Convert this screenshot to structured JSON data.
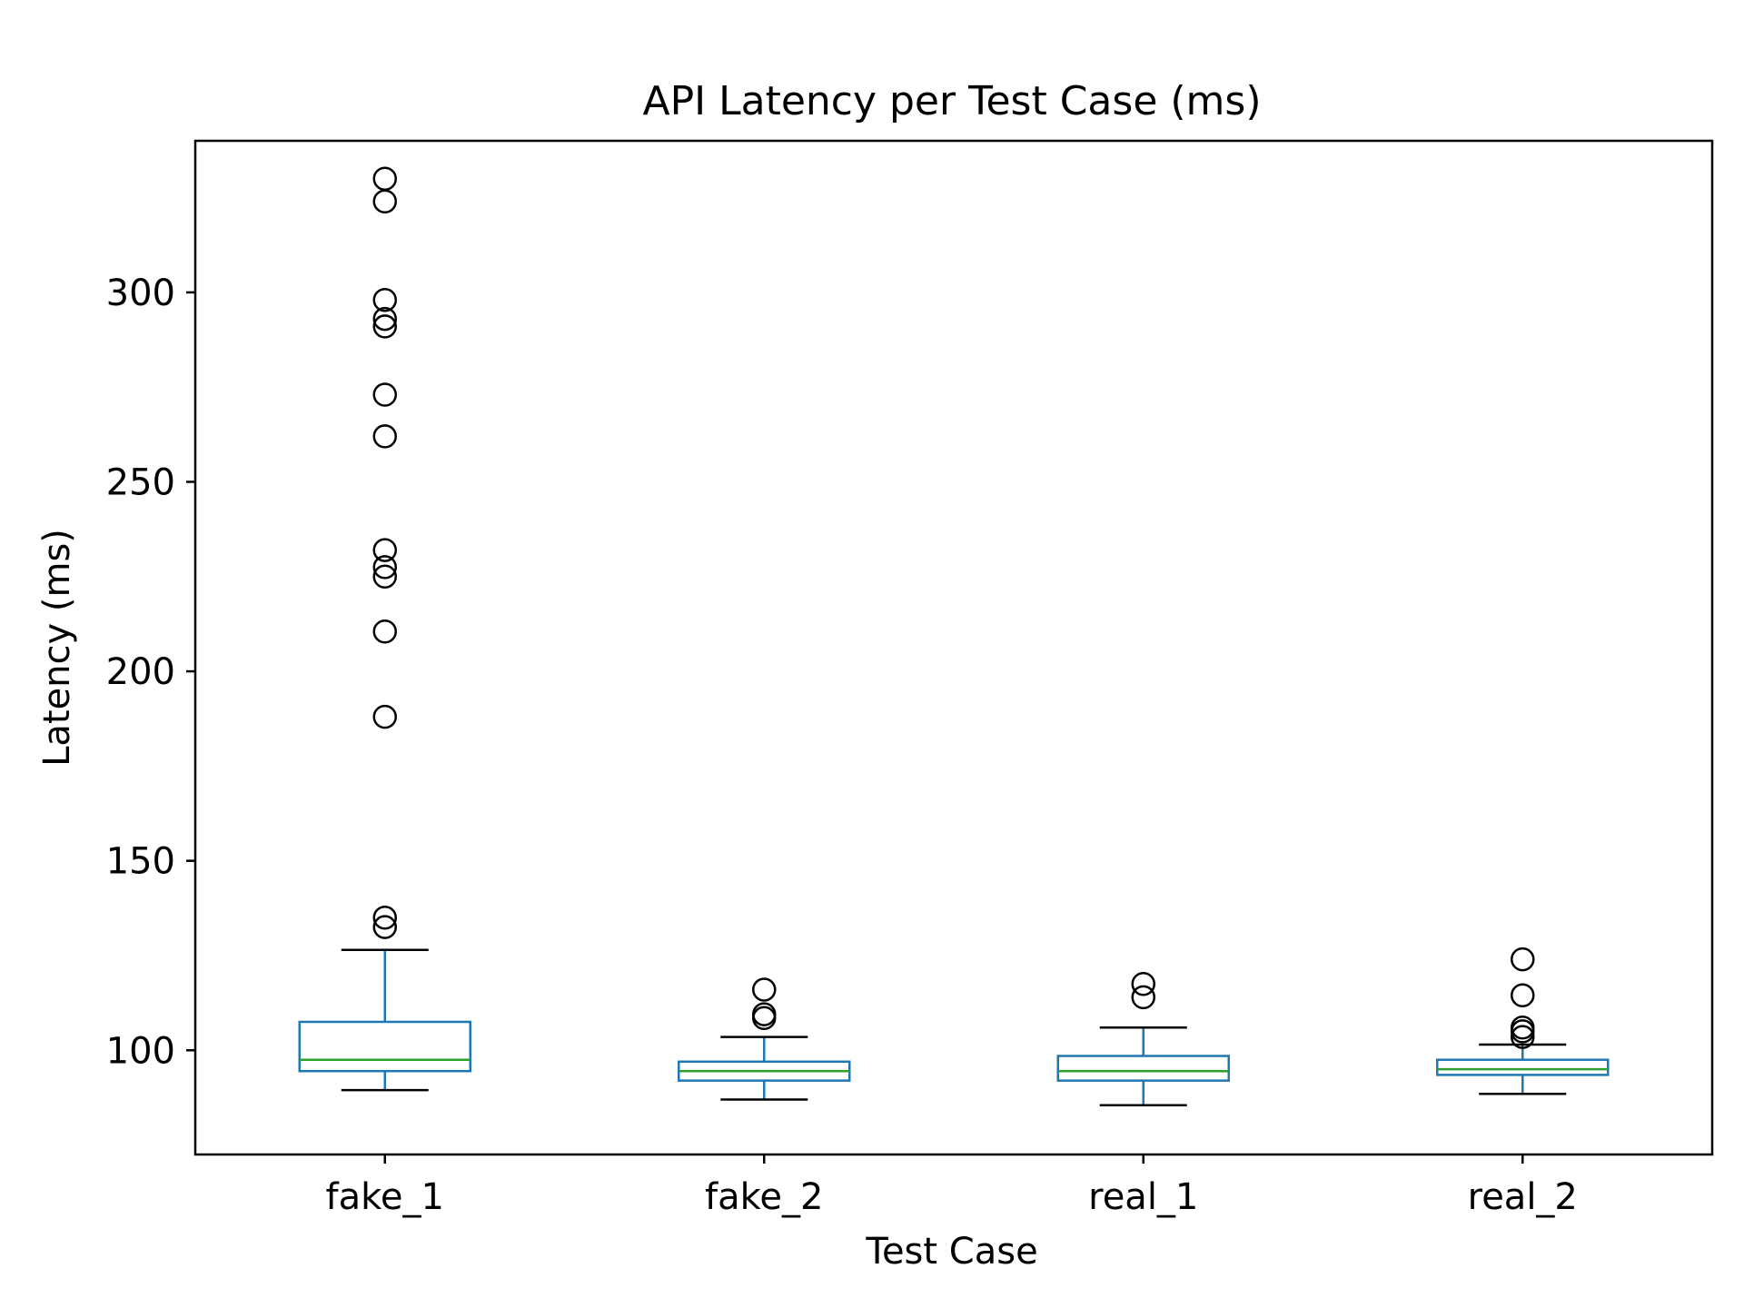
{
  "chart_data": {
    "type": "box",
    "title": "API Latency per Test Case (ms)",
    "xlabel": "Test Case",
    "ylabel": "Latency (ms)",
    "ylim": [
      72.5,
      340
    ],
    "yticks": [
      100,
      150,
      200,
      250,
      300
    ],
    "categories": [
      "fake_1",
      "fake_2",
      "real_1",
      "real_2"
    ],
    "grid": false,
    "colors": {
      "box": "#1f77b4",
      "median": "#2ca02c",
      "whisker_cap": "#000000",
      "flier": "#000000"
    },
    "boxes": [
      {
        "label": "fake_1",
        "whisker_low": 89.5,
        "q1": 94.5,
        "median": 97.5,
        "q3": 107.5,
        "whisker_high": 126.5,
        "fliers": [
          132.5,
          135,
          188,
          210.5,
          225,
          227.5,
          232,
          262,
          273,
          291,
          293,
          298,
          324,
          330
        ]
      },
      {
        "label": "fake_2",
        "whisker_low": 87,
        "q1": 92,
        "median": 94.5,
        "q3": 97,
        "whisker_high": 103.5,
        "fliers": [
          108.5,
          109.5,
          116
        ]
      },
      {
        "label": "real_1",
        "whisker_low": 85.5,
        "q1": 92,
        "median": 94.5,
        "q3": 98.5,
        "whisker_high": 106,
        "fliers": [
          114,
          117.5
        ]
      },
      {
        "label": "real_2",
        "whisker_low": 88.5,
        "q1": 93.5,
        "median": 95,
        "q3": 97.5,
        "whisker_high": 101.5,
        "fliers": [
          103.5,
          105,
          106,
          114.5,
          124
        ]
      }
    ]
  }
}
